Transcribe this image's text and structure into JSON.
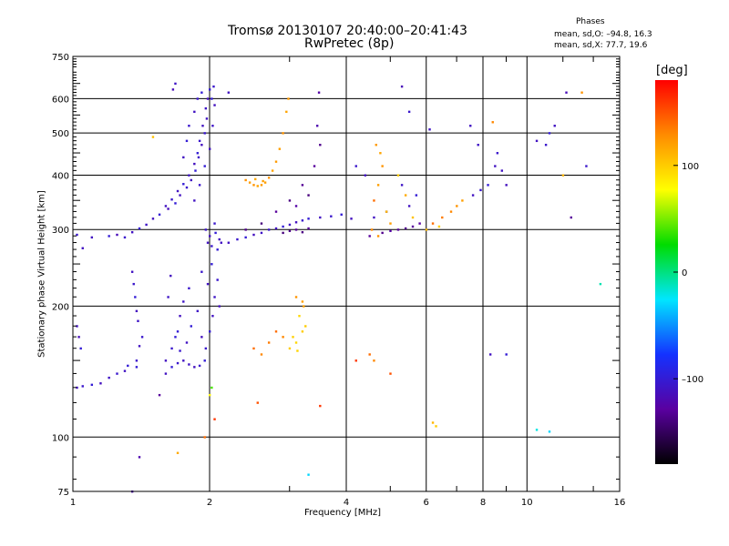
{
  "header": {
    "title_line1": "Tromsø 20130107 20:40:00–20:41:43",
    "title_line2": "RwPretec (8p)",
    "phases_title": "Phases",
    "phase_o": "mean, sd,O: –94.8, 16.3",
    "phase_x": "mean, sd,X:  77.7, 19.6"
  },
  "colorbar": {
    "unit": "[deg]",
    "ticks": [
      {
        "value": 100,
        "label": "100"
      },
      {
        "value": 0,
        "label": "0"
      },
      {
        "value": -100,
        "label": "–100"
      }
    ],
    "range": [
      -180,
      180
    ],
    "colors": [
      "#000000",
      "#5a00a0",
      "#1432ff",
      "#00e6ff",
      "#00dc00",
      "#ffff00",
      "#ff8c00",
      "#ff0000"
    ]
  },
  "chart_data": {
    "type": "scatter",
    "xlabel": "Frequency [MHz]",
    "ylabel": "Stationary phase Virtual Height [km]",
    "x_scale": "log",
    "y_scale": "log",
    "xlim": [
      1,
      16
    ],
    "ylim": [
      75,
      750
    ],
    "x_ticks": [
      {
        "value": 1,
        "label": "1"
      },
      {
        "value": 2,
        "label": "2"
      },
      {
        "value": 4,
        "label": "4"
      },
      {
        "value": 6,
        "label": "6"
      },
      {
        "value": 8,
        "label": "8"
      },
      {
        "value": 10,
        "label": "10"
      },
      {
        "value": 16,
        "label": "16"
      }
    ],
    "y_ticks": [
      {
        "value": 75,
        "label": "75"
      },
      {
        "value": 100,
        "label": "100"
      },
      {
        "value": 200,
        "label": "200"
      },
      {
        "value": 300,
        "label": "300"
      },
      {
        "value": 400,
        "label": "400"
      },
      {
        "value": 500,
        "label": "500"
      },
      {
        "value": 600,
        "label": "600"
      },
      {
        "value": 750,
        "label": "750"
      }
    ],
    "grid": true,
    "color_by": "phase [deg]",
    "points": [
      [
        1.02,
        130,
        -110
      ],
      [
        1.05,
        131,
        -105
      ],
      [
        1.1,
        132,
        -100
      ],
      [
        1.15,
        133,
        -112
      ],
      [
        1.2,
        137,
        -108
      ],
      [
        1.25,
        140,
        -104
      ],
      [
        1.3,
        142,
        -110
      ],
      [
        1.32,
        146,
        -100
      ],
      [
        1.38,
        150,
        -106
      ],
      [
        1.4,
        162,
        -110
      ],
      [
        1.42,
        170,
        -105
      ],
      [
        1.38,
        145,
        -100
      ],
      [
        1.02,
        180,
        -110
      ],
      [
        1.03,
        170,
        -115
      ],
      [
        1.04,
        160,
        -100
      ],
      [
        1.35,
        240,
        -110
      ],
      [
        1.36,
        225,
        -105
      ],
      [
        1.37,
        210,
        -100
      ],
      [
        1.38,
        195,
        -112
      ],
      [
        1.39,
        185,
        -108
      ],
      [
        1.02,
        292,
        -105
      ],
      [
        1.1,
        288,
        -110
      ],
      [
        1.2,
        290,
        -100
      ],
      [
        1.25,
        292,
        -115
      ],
      [
        1.3,
        288,
        -105
      ],
      [
        1.35,
        296,
        -110
      ],
      [
        1.4,
        302,
        -100
      ],
      [
        1.45,
        308,
        -108
      ],
      [
        1.5,
        318,
        -112
      ],
      [
        1.55,
        325,
        -100
      ],
      [
        1.6,
        340,
        -110
      ],
      [
        1.65,
        352,
        -105
      ],
      [
        1.7,
        368,
        -110
      ],
      [
        1.75,
        382,
        -100
      ],
      [
        1.8,
        400,
        -108
      ],
      [
        1.85,
        425,
        -112
      ],
      [
        1.88,
        450,
        -100
      ],
      [
        1.9,
        480,
        -105
      ],
      [
        1.93,
        520,
        -110
      ],
      [
        1.96,
        570,
        -108
      ],
      [
        1.98,
        600,
        -112
      ],
      [
        2.0,
        630,
        -100
      ],
      [
        1.62,
        335,
        -115
      ],
      [
        1.68,
        345,
        -100
      ],
      [
        1.72,
        360,
        -110
      ],
      [
        1.78,
        375,
        -105
      ],
      [
        1.82,
        390,
        -110
      ],
      [
        1.86,
        410,
        -100
      ],
      [
        1.89,
        440,
        -108
      ],
      [
        1.92,
        470,
        -112
      ],
      [
        1.95,
        500,
        -105
      ],
      [
        1.97,
        540,
        -110
      ],
      [
        2.02,
        600,
        -100
      ],
      [
        2.04,
        640,
        -105
      ],
      [
        1.85,
        350,
        -110
      ],
      [
        1.9,
        380,
        -105
      ],
      [
        1.95,
        420,
        -100
      ],
      [
        2.0,
        460,
        -110
      ],
      [
        2.03,
        520,
        -108
      ],
      [
        2.05,
        580,
        -112
      ],
      [
        1.88,
        600,
        -105
      ],
      [
        1.92,
        620,
        -100
      ],
      [
        1.85,
        560,
        -110
      ],
      [
        1.8,
        520,
        -105
      ],
      [
        1.78,
        480,
        -100
      ],
      [
        1.75,
        440,
        -110
      ],
      [
        1.66,
        630,
        -115
      ],
      [
        1.68,
        650,
        -108
      ],
      [
        1.98,
        280,
        -110
      ],
      [
        2.02,
        275,
        -105
      ],
      [
        2.08,
        270,
        -100
      ],
      [
        2.1,
        285,
        -112
      ],
      [
        1.96,
        300,
        -108
      ],
      [
        2.05,
        310,
        -105
      ],
      [
        2.0,
        290,
        -112
      ],
      [
        2.06,
        295,
        -100
      ],
      [
        2.12,
        280,
        -110
      ],
      [
        1.6,
        150,
        -110
      ],
      [
        1.65,
        160,
        -105
      ],
      [
        1.7,
        175,
        -100
      ],
      [
        1.72,
        190,
        -112
      ],
      [
        1.75,
        205,
        -108
      ],
      [
        1.8,
        220,
        -105
      ],
      [
        1.6,
        140,
        -110
      ],
      [
        1.65,
        145,
        -100
      ],
      [
        1.7,
        148,
        -105
      ],
      [
        1.75,
        150,
        -110
      ],
      [
        1.8,
        147,
        -108
      ],
      [
        1.85,
        145,
        -112
      ],
      [
        1.9,
        146,
        -105
      ],
      [
        1.95,
        150,
        -100
      ],
      [
        1.62,
        210,
        -108
      ],
      [
        1.64,
        235,
        -112
      ],
      [
        1.68,
        170,
        -100
      ],
      [
        1.72,
        158,
        -105
      ],
      [
        1.78,
        165,
        -110
      ],
      [
        1.82,
        180,
        -100
      ],
      [
        1.88,
        195,
        -108
      ],
      [
        1.92,
        170,
        -112
      ],
      [
        1.96,
        160,
        -105
      ],
      [
        2.0,
        175,
        -100
      ],
      [
        2.03,
        190,
        -110
      ],
      [
        2.05,
        210,
        -108
      ],
      [
        2.08,
        230,
        -105
      ],
      [
        2.1,
        200,
        -112
      ],
      [
        2.02,
        250,
        -100
      ],
      [
        1.98,
        225,
        -110
      ],
      [
        1.92,
        240,
        -105
      ],
      [
        2.2,
        280,
        -110
      ],
      [
        2.3,
        285,
        -105
      ],
      [
        2.4,
        288,
        -100
      ],
      [
        2.5,
        292,
        -112
      ],
      [
        2.6,
        295,
        -108
      ],
      [
        2.7,
        300,
        -105
      ],
      [
        2.8,
        302,
        -110
      ],
      [
        2.9,
        305,
        -100
      ],
      [
        3.0,
        308,
        -108
      ],
      [
        3.1,
        312,
        -112
      ],
      [
        3.2,
        315,
        -105
      ],
      [
        3.3,
        318,
        -100
      ],
      [
        3.5,
        320,
        -110
      ],
      [
        3.7,
        322,
        -105
      ],
      [
        3.9,
        325,
        -100
      ],
      [
        4.1,
        318,
        -112
      ],
      [
        2.9,
        295,
        -140
      ],
      [
        3.0,
        298,
        -135
      ],
      [
        3.1,
        300,
        -130
      ],
      [
        3.2,
        296,
        -138
      ],
      [
        3.3,
        302,
        -132
      ],
      [
        2.4,
        300,
        -135
      ],
      [
        2.6,
        310,
        -140
      ],
      [
        2.8,
        330,
        -130
      ],
      [
        3.0,
        350,
        -138
      ],
      [
        3.2,
        380,
        -132
      ],
      [
        3.4,
        420,
        -130
      ],
      [
        3.5,
        470,
        -135
      ],
      [
        3.3,
        360,
        -140
      ],
      [
        3.1,
        340,
        -125
      ],
      [
        3.45,
        520,
        -120
      ],
      [
        3.48,
        620,
        -125
      ],
      [
        2.45,
        385,
        120
      ],
      [
        2.5,
        380,
        125
      ],
      [
        2.55,
        378,
        118
      ],
      [
        2.6,
        380,
        122
      ],
      [
        2.65,
        385,
        120
      ],
      [
        2.7,
        395,
        125
      ],
      [
        2.75,
        410,
        118
      ],
      [
        2.8,
        430,
        122
      ],
      [
        2.85,
        460,
        120
      ],
      [
        2.9,
        500,
        125
      ],
      [
        2.95,
        560,
        118
      ],
      [
        2.98,
        600,
        122
      ],
      [
        2.4,
        390,
        125
      ],
      [
        2.52,
        392,
        115
      ],
      [
        2.62,
        388,
        120
      ],
      [
        2.5,
        160,
        140
      ],
      [
        2.6,
        155,
        130
      ],
      [
        2.7,
        165,
        135
      ],
      [
        2.8,
        175,
        140
      ],
      [
        2.9,
        170,
        130
      ],
      [
        3.0,
        160,
        100
      ],
      [
        3.1,
        165,
        95
      ],
      [
        3.2,
        175,
        100
      ],
      [
        3.15,
        190,
        95
      ],
      [
        3.25,
        180,
        100
      ],
      [
        3.05,
        170,
        98
      ],
      [
        3.12,
        158,
        96
      ],
      [
        3.22,
        200,
        120
      ],
      [
        3.1,
        210,
        125
      ],
      [
        3.2,
        205,
        120
      ],
      [
        4.5,
        290,
        -130
      ],
      [
        4.8,
        295,
        -135
      ],
      [
        5.0,
        298,
        -125
      ],
      [
        5.2,
        300,
        -130
      ],
      [
        5.4,
        302,
        -135
      ],
      [
        5.6,
        305,
        -130
      ],
      [
        5.8,
        310,
        -128
      ],
      [
        4.6,
        320,
        -110
      ],
      [
        4.9,
        330,
        -105
      ],
      [
        5.5,
        340,
        -110
      ],
      [
        5.7,
        360,
        -100
      ],
      [
        5.3,
        380,
        -108
      ],
      [
        4.4,
        400,
        -110
      ],
      [
        4.2,
        420,
        -105
      ],
      [
        4.6,
        350,
        140
      ],
      [
        4.7,
        380,
        120
      ],
      [
        4.8,
        420,
        125
      ],
      [
        4.75,
        450,
        118
      ],
      [
        4.65,
        470,
        122
      ],
      [
        4.9,
        330,
        110
      ],
      [
        5.0,
        310,
        120
      ],
      [
        4.55,
        300,
        130
      ],
      [
        4.7,
        290,
        125
      ],
      [
        5.2,
        400,
        100
      ],
      [
        5.4,
        360,
        115
      ],
      [
        5.6,
        320,
        105
      ],
      [
        6.2,
        310,
        140
      ],
      [
        6.5,
        320,
        135
      ],
      [
        6.8,
        330,
        130
      ],
      [
        7.0,
        340,
        125
      ],
      [
        7.2,
        350,
        120
      ],
      [
        6.0,
        300,
        110
      ],
      [
        6.4,
        305,
        100
      ],
      [
        7.6,
        360,
        -110
      ],
      [
        7.9,
        370,
        -105
      ],
      [
        8.2,
        380,
        -100
      ],
      [
        8.5,
        420,
        -110
      ],
      [
        8.6,
        450,
        -105
      ],
      [
        7.8,
        470,
        -108
      ],
      [
        8.4,
        530,
        130
      ],
      [
        8.8,
        410,
        -110
      ],
      [
        9.0,
        380,
        -112
      ],
      [
        11.5,
        520,
        -110
      ],
      [
        11.2,
        500,
        -100
      ],
      [
        12.0,
        400,
        110
      ],
      [
        12.5,
        320,
        -130
      ],
      [
        13.2,
        620,
        125
      ],
      [
        11.0,
        470,
        -105
      ],
      [
        10.5,
        480,
        -110
      ],
      [
        12.2,
        620,
        -115
      ],
      [
        13.5,
        420,
        -105
      ],
      [
        1.05,
        272,
        -110
      ],
      [
        1.5,
        490,
        105
      ],
      [
        2.2,
        620,
        -110
      ],
      [
        5.3,
        640,
        -115
      ],
      [
        5.5,
        560,
        -105
      ],
      [
        6.1,
        510,
        -108
      ],
      [
        7.5,
        520,
        -110
      ],
      [
        1.4,
        90,
        -120
      ],
      [
        1.7,
        92,
        115
      ],
      [
        1.95,
        100,
        140
      ],
      [
        2.05,
        110,
        160
      ],
      [
        2.0,
        125,
        80
      ],
      [
        2.02,
        130,
        40
      ],
      [
        3.3,
        82,
        -30
      ],
      [
        4.5,
        155,
        140
      ],
      [
        4.6,
        150,
        130
      ],
      [
        5.0,
        140,
        150
      ],
      [
        6.2,
        108,
        110
      ],
      [
        6.3,
        106,
        100
      ],
      [
        8.3,
        155,
        -110
      ],
      [
        9.0,
        155,
        -100
      ],
      [
        10.5,
        104,
        -20
      ],
      [
        11.2,
        103,
        -30
      ],
      [
        14.5,
        225,
        -10
      ],
      [
        1.35,
        75,
        -120
      ],
      [
        1.55,
        125,
        -130
      ],
      [
        2.55,
        120,
        150
      ],
      [
        3.5,
        118,
        160
      ],
      [
        4.2,
        150,
        160
      ]
    ]
  }
}
